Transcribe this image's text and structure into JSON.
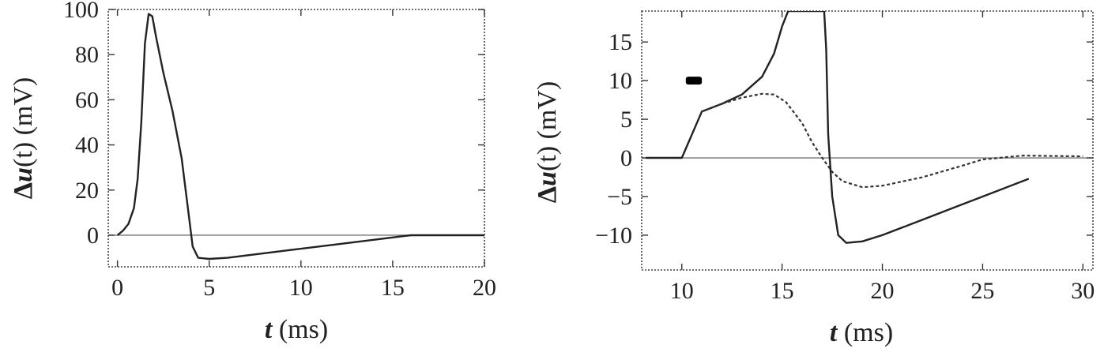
{
  "chart_data": [
    {
      "type": "line",
      "xlabel_var": "t",
      "xlabel_unit": "(ms)",
      "ylabel_prefix": "Δ",
      "ylabel_var": "u",
      "ylabel_arg": "(t)",
      "ylabel_unit": "(mV)",
      "xlim": [
        -0.5,
        20
      ],
      "ylim": [
        -14,
        100
      ],
      "xticks": [
        0,
        5,
        10,
        15,
        20
      ],
      "yticks": [
        0,
        20,
        40,
        60,
        80,
        100
      ],
      "zero_line": true,
      "grid": false,
      "series": [
        {
          "style": "solid",
          "x": [
            0,
            0.3,
            0.6,
            0.9,
            1.1,
            1.3,
            1.5,
            1.7,
            1.9,
            2.1,
            2.5,
            3.0,
            3.5,
            3.9,
            4.1,
            4.4,
            5,
            6,
            8,
            10,
            12,
            14,
            15,
            16,
            17,
            18,
            20
          ],
          "y": [
            0,
            2,
            5,
            12,
            25,
            50,
            85,
            98,
            97,
            88,
            72,
            55,
            34,
            8,
            -5,
            -10,
            -10.5,
            -10,
            -8,
            -6,
            -4,
            -2,
            -1,
            0,
            0,
            0,
            0
          ]
        }
      ]
    },
    {
      "type": "line",
      "xlabel_var": "t",
      "xlabel_unit": "(ms)",
      "ylabel_prefix": "Δ",
      "ylabel_var": "u",
      "ylabel_arg": "(t)",
      "ylabel_unit": "(mV)",
      "xlim": [
        8,
        30.5
      ],
      "ylim": [
        -14.5,
        19
      ],
      "xticks": [
        10,
        15,
        20,
        25,
        30
      ],
      "yticks": [
        -10,
        -5,
        0,
        5,
        10,
        15
      ],
      "zero_line": true,
      "grid": false,
      "stimulus": {
        "x": [
          10.2,
          11.0
        ],
        "y": 10
      },
      "series": [
        {
          "style": "solid",
          "x": [
            8.2,
            10,
            11,
            12,
            13,
            14,
            14.6,
            15,
            15.3,
            15.6,
            17.1,
            17.2,
            17.3,
            17.5,
            17.8,
            18.2,
            19,
            20,
            22,
            24,
            26,
            27.3
          ],
          "y": [
            0,
            0,
            6,
            7,
            8.2,
            10.5,
            13.5,
            17,
            19,
            19,
            19,
            14,
            3,
            -5,
            -10,
            -11,
            -10.8,
            -10,
            -8,
            -6,
            -4,
            -2.7
          ]
        },
        {
          "style": "dashed",
          "x": [
            11,
            12,
            13,
            14,
            14.6,
            15.2,
            16,
            16.5,
            17,
            17.5,
            18,
            19,
            20,
            22,
            24,
            25,
            27,
            30
          ],
          "y": [
            6,
            7,
            7.8,
            8.3,
            8.2,
            7.2,
            4.5,
            2.0,
            0,
            -1.8,
            -3.0,
            -3.8,
            -3.6,
            -2.5,
            -1,
            -0.2,
            0.3,
            0.2
          ]
        }
      ]
    }
  ]
}
